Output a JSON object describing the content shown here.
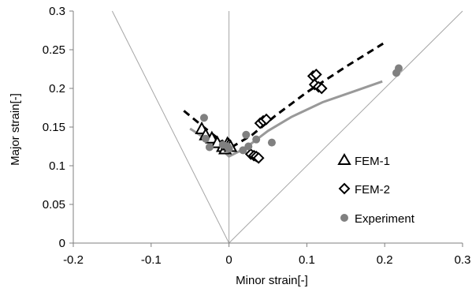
{
  "chart_data": {
    "type": "scatter",
    "xlabel": "Minor strain[-]",
    "ylabel": "Major strain[-]",
    "xlim": [
      -0.2,
      0.3
    ],
    "ylim": [
      0,
      0.3
    ],
    "xticks": [
      "-0.2",
      "-0.1",
      "0",
      "0.1",
      "0.2",
      "0.3"
    ],
    "yticks": [
      "0",
      "0.05",
      "0.1",
      "0.15",
      "0.2",
      "0.25",
      "0.3"
    ],
    "legend_position": "right",
    "reference_lines": [
      {
        "type": "line",
        "points": [
          [
            -0.15,
            0.3
          ],
          [
            0,
            0
          ]
        ],
        "color": "#a6a6a6"
      },
      {
        "type": "line",
        "points": [
          [
            0,
            0
          ],
          [
            0,
            0.3
          ]
        ],
        "color": "#a6a6a6"
      },
      {
        "type": "line",
        "points": [
          [
            0,
            0
          ],
          [
            0.3,
            0.3
          ]
        ],
        "color": "#a6a6a6"
      }
    ],
    "series": [
      {
        "name": "FEM-1",
        "marker": "triangle",
        "color": "#000000",
        "points": [
          [
            -0.035,
            0.148
          ],
          [
            -0.03,
            0.14
          ],
          [
            -0.022,
            0.136
          ],
          [
            -0.015,
            0.13
          ],
          [
            -0.008,
            0.125
          ],
          [
            -0.005,
            0.122
          ],
          [
            -0.002,
            0.129
          ],
          [
            0.0,
            0.127
          ],
          [
            0.002,
            0.125
          ]
        ]
      },
      {
        "name": "FEM-2",
        "marker": "diamond",
        "color": "#000000",
        "points": [
          [
            0.028,
            0.115
          ],
          [
            0.032,
            0.113
          ],
          [
            0.035,
            0.112
          ],
          [
            0.038,
            0.11
          ],
          [
            0.04,
            0.155
          ],
          [
            0.044,
            0.158
          ],
          [
            0.048,
            0.16
          ],
          [
            0.108,
            0.216
          ],
          [
            0.112,
            0.218
          ],
          [
            0.11,
            0.205
          ],
          [
            0.115,
            0.202
          ],
          [
            0.119,
            0.2
          ]
        ]
      },
      {
        "name": "Experiment",
        "marker": "circle",
        "color": "#808080",
        "points": [
          [
            -0.032,
            0.162
          ],
          [
            -0.03,
            0.135
          ],
          [
            -0.025,
            0.124
          ],
          [
            -0.008,
            0.127
          ],
          [
            -0.002,
            0.125
          ],
          [
            0.0,
            0.122
          ],
          [
            0.018,
            0.12
          ],
          [
            0.022,
            0.14
          ],
          [
            0.025,
            0.125
          ],
          [
            0.035,
            0.134
          ],
          [
            0.055,
            0.13
          ],
          [
            0.215,
            0.22
          ],
          [
            0.218,
            0.226
          ]
        ]
      }
    ],
    "trend_lines": [
      {
        "style": "dashed",
        "color": "#000000",
        "points": [
          [
            -0.058,
            0.171
          ],
          [
            -0.03,
            0.148
          ],
          [
            -0.01,
            0.132
          ],
          [
            0.005,
            0.125
          ],
          [
            0.03,
            0.14
          ],
          [
            0.06,
            0.165
          ],
          [
            0.1,
            0.195
          ],
          [
            0.15,
            0.228
          ],
          [
            0.198,
            0.258
          ]
        ]
      },
      {
        "style": "solid",
        "color": "#999999",
        "points": [
          [
            -0.05,
            0.148
          ],
          [
            -0.03,
            0.135
          ],
          [
            -0.015,
            0.126
          ],
          [
            0.0,
            0.112
          ],
          [
            0.02,
            0.122
          ],
          [
            0.05,
            0.145
          ],
          [
            0.08,
            0.163
          ],
          [
            0.12,
            0.182
          ],
          [
            0.16,
            0.196
          ],
          [
            0.197,
            0.209
          ]
        ]
      }
    ]
  }
}
